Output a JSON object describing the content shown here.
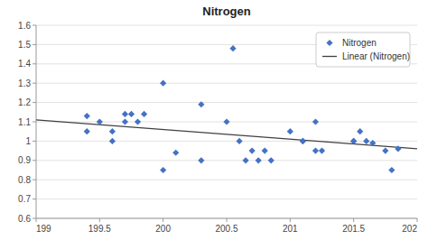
{
  "chart_data": {
    "type": "scatter",
    "title": "Nitrogen",
    "xlim": [
      199,
      202
    ],
    "ylim": [
      0.6,
      1.6
    ],
    "xticks": [
      199,
      199.5,
      200,
      200.5,
      201,
      201.5,
      202
    ],
    "yticks": [
      0.6,
      0.7,
      0.8,
      0.9,
      1.0,
      1.1,
      1.2,
      1.3,
      1.4,
      1.5,
      1.6
    ],
    "grid": true,
    "legend": "upper right",
    "series": [
      {
        "name": "Nitrogen",
        "type": "scatter",
        "color": "#4472C4",
        "marker": "diamond",
        "x": [
          199.4,
          199.4,
          199.5,
          199.6,
          199.6,
          199.7,
          199.7,
          199.75,
          199.8,
          199.85,
          200.0,
          200.0,
          200.1,
          200.3,
          200.3,
          200.5,
          200.55,
          200.6,
          200.65,
          200.7,
          200.75,
          200.8,
          200.85,
          201.0,
          201.1,
          201.1,
          201.2,
          201.2,
          201.25,
          201.5,
          201.5,
          201.55,
          201.6,
          201.65,
          201.75,
          201.8,
          201.85
        ],
        "values": [
          1.13,
          1.05,
          1.1,
          1.0,
          1.05,
          1.1,
          1.14,
          1.14,
          1.1,
          1.14,
          1.3,
          0.85,
          0.94,
          1.19,
          0.9,
          1.1,
          1.48,
          1.0,
          0.9,
          0.95,
          0.9,
          0.95,
          0.9,
          1.05,
          1.0,
          1.0,
          1.1,
          0.95,
          0.95,
          1.0,
          1.0,
          1.05,
          1.0,
          0.99,
          0.95,
          0.85,
          0.96
        ]
      },
      {
        "name": "Linear (Nitrogen)",
        "type": "line",
        "color": "#404040",
        "x": [
          199.0,
          202.0
        ],
        "values": [
          1.11,
          0.96
        ]
      }
    ]
  }
}
